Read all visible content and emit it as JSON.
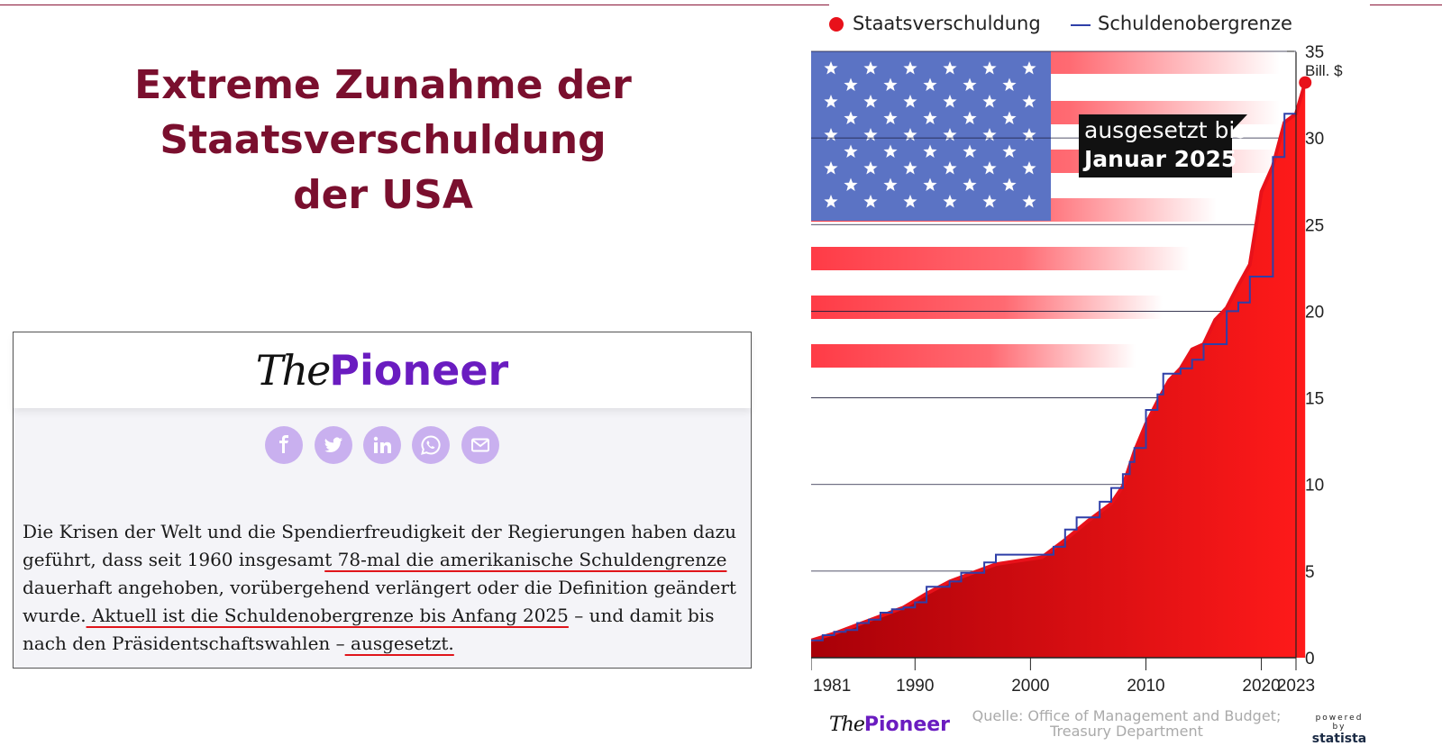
{
  "slide": {
    "title_lines": [
      "Extreme Zunahme der",
      "Staatsverschuldung",
      "der USA"
    ]
  },
  "article": {
    "logo_the": "The",
    "logo_pioneer": "Pioneer",
    "share_icons": [
      "facebook-icon",
      "twitter-icon",
      "linkedin-icon",
      "whatsapp-icon",
      "mail-icon"
    ],
    "text": {
      "p1": "Die Krisen der Welt und die Spendierfreudigkeit der Regierungen haben dazu geführt, dass seit 1960 insgesam",
      "u1": "t 78-mal die amerikanische Schuldengrenze",
      "p2": " dauerhaft angehoben, vorübergehend verlängert oder die Definition geändert wurde.",
      "u2": " Aktuell ist die Schuldenobergrenze bis Anfang 2025",
      "p3": " – und damit bis nach den Präsidentschaftswahlen –",
      "u3": " ausgesetzt."
    }
  },
  "footer": {
    "logo_the": "The",
    "logo_pioneer": "Pioneer",
    "source_line1": "Quelle: Office of Management and Budget;",
    "source_line2": "Treasury Department",
    "statista_powered": "powered by",
    "statista_name": "statista"
  },
  "colors": {
    "title": "#7a0f2e",
    "debt_fill": "#e8111a",
    "ceiling_line": "#2f3fa8",
    "flag_blue": "#5b73c4",
    "pioneer_purple": "#6a1cc0"
  },
  "chart_data": {
    "type": "area",
    "legend": [
      "Staatsverschuldung",
      "Schuldenobergrenze"
    ],
    "legend_position": "top",
    "x_ticks": [
      "1981",
      "1990",
      "2000",
      "2010",
      "2020",
      "2023"
    ],
    "y_ticks": [
      0,
      5,
      10,
      15,
      20,
      25,
      30,
      35
    ],
    "y_unit": "Bill. $",
    "ylim": [
      0,
      35
    ],
    "xlim": [
      1981,
      2023
    ],
    "grid": "horizontal",
    "background_image": "US flag",
    "annotation": {
      "line1": "ausgesetzt bis",
      "line2": "Januar 2025"
    },
    "series": [
      {
        "name": "Staatsverschuldung",
        "x": [
          1981,
          1983,
          1985,
          1987,
          1989,
          1991,
          1993,
          1995,
          1997,
          1999,
          2001,
          2003,
          2005,
          2007,
          2008,
          2009,
          2010,
          2011,
          2012,
          2013,
          2014,
          2015,
          2016,
          2017,
          2018,
          2019,
          2020,
          2021,
          2022,
          2023,
          2023.8
        ],
        "values": [
          1.0,
          1.4,
          1.9,
          2.4,
          2.9,
          3.7,
          4.4,
          4.9,
          5.4,
          5.6,
          5.8,
          6.8,
          7.9,
          8.9,
          9.9,
          11.9,
          13.5,
          14.8,
          16.0,
          16.7,
          17.8,
          18.1,
          19.5,
          20.2,
          21.5,
          22.7,
          26.9,
          28.4,
          30.9,
          31.4,
          33.2
        ]
      },
      {
        "name": "Schuldenobergrenze",
        "x": [
          1981,
          1982,
          1983,
          1984,
          1985,
          1986,
          1987,
          1988,
          1989,
          1990,
          1991,
          1993,
          1994,
          1996,
          1997,
          2002,
          2003,
          2004,
          2006,
          2007,
          2008,
          2008.6,
          2009,
          2010,
          2011,
          2011.5,
          2012,
          2013,
          2014,
          2015,
          2017,
          2018,
          2019,
          2021,
          2021.5,
          2022,
          2023
        ],
        "values": [
          1.0,
          1.3,
          1.5,
          1.6,
          2.0,
          2.2,
          2.6,
          2.8,
          2.9,
          3.2,
          4.1,
          4.4,
          4.9,
          5.5,
          5.95,
          6.4,
          7.4,
          8.1,
          9.0,
          9.8,
          10.6,
          11.3,
          12.1,
          14.3,
          15.2,
          16.4,
          16.4,
          16.7,
          17.2,
          18.1,
          20.0,
          20.5,
          22.0,
          28.9,
          28.9,
          31.4,
          31.4
        ]
      }
    ]
  }
}
